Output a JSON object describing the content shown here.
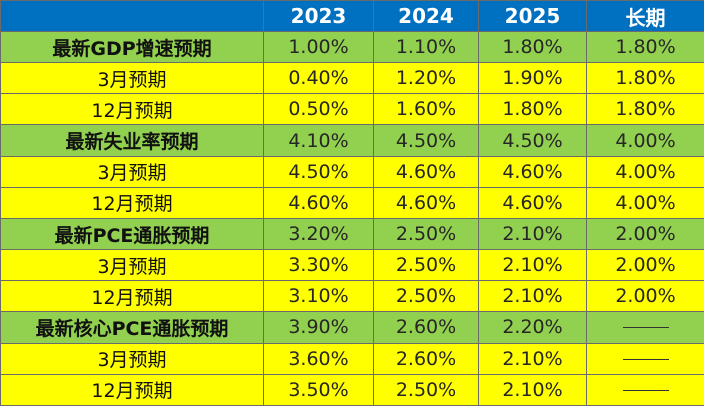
{
  "header": [
    "",
    "2023",
    "2024",
    "2025",
    "长期"
  ],
  "rows": [
    {
      "label": "最新GDP增速预期",
      "kind": "section",
      "values": [
        "1.00%",
        "1.10%",
        "1.80%",
        "1.80%"
      ]
    },
    {
      "label": "3月预期",
      "kind": "sub",
      "values": [
        "0.40%",
        "1.20%",
        "1.90%",
        "1.80%"
      ]
    },
    {
      "label": "12月预期",
      "kind": "sub",
      "values": [
        "0.50%",
        "1.60%",
        "1.80%",
        "1.80%"
      ]
    },
    {
      "label": "最新失业率预期",
      "kind": "section",
      "values": [
        "4.10%",
        "4.50%",
        "4.50%",
        "4.00%"
      ]
    },
    {
      "label": "3月预期",
      "kind": "sub",
      "values": [
        "4.50%",
        "4.60%",
        "4.60%",
        "4.00%"
      ]
    },
    {
      "label": "12月预期",
      "kind": "sub",
      "values": [
        "4.60%",
        "4.60%",
        "4.60%",
        "4.00%"
      ]
    },
    {
      "label": "最新PCE通胀预期",
      "kind": "section",
      "values": [
        "3.20%",
        "2.50%",
        "2.10%",
        "2.00%"
      ]
    },
    {
      "label": "3月预期",
      "kind": "sub",
      "values": [
        "3.30%",
        "2.50%",
        "2.10%",
        "2.00%"
      ]
    },
    {
      "label": "12月预期",
      "kind": "sub",
      "values": [
        "3.10%",
        "2.50%",
        "2.10%",
        "2.00%"
      ]
    },
    {
      "label": "最新核心PCE通胀预期",
      "kind": "section",
      "values": [
        "3.90%",
        "2.60%",
        "2.20%",
        "——"
      ]
    },
    {
      "label": "3月预期",
      "kind": "sub",
      "values": [
        "3.60%",
        "2.60%",
        "2.10%",
        "——"
      ]
    },
    {
      "label": "12月预期",
      "kind": "sub",
      "values": [
        "3.50%",
        "2.50%",
        "2.10%",
        "——"
      ]
    }
  ],
  "colors": {
    "header_bg": "#0070c0",
    "section_bg": "#92d050",
    "sub_bg": "#ffff00"
  }
}
